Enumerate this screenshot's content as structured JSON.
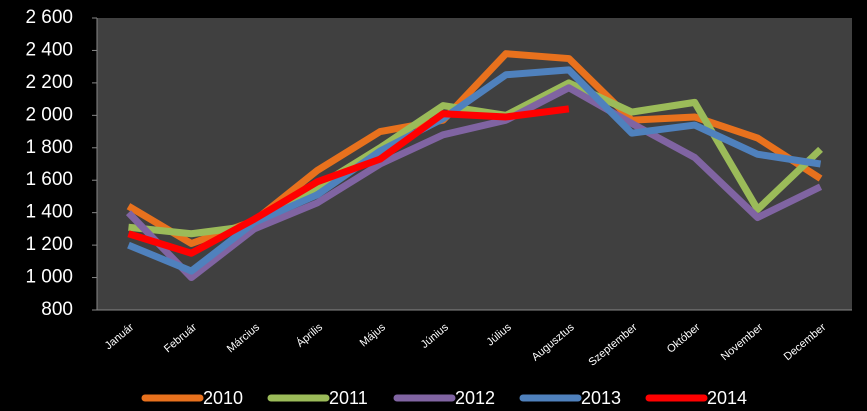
{
  "chart_data": {
    "type": "line",
    "categories": [
      "Január",
      "Február",
      "Március",
      "Április",
      "Május",
      "Június",
      "Július",
      "Augusztus",
      "Szeptember",
      "Október",
      "November",
      "December"
    ],
    "series": [
      {
        "name": "2010",
        "color": "#e8711d",
        "values": [
          1440,
          1210,
          1350,
          1660,
          1900,
          1970,
          2380,
          2350,
          1970,
          1990,
          1860,
          1610
        ]
      },
      {
        "name": "2011",
        "color": "#9bbb59",
        "values": [
          1310,
          1270,
          1320,
          1560,
          1800,
          2060,
          2000,
          2200,
          2020,
          2080,
          1420,
          1790
        ]
      },
      {
        "name": "2012",
        "color": "#8064a2",
        "values": [
          1400,
          1000,
          1300,
          1460,
          1700,
          1880,
          1970,
          2170,
          1950,
          1740,
          1370,
          1560
        ]
      },
      {
        "name": "2013",
        "color": "#4f81bd",
        "values": [
          1200,
          1040,
          1340,
          1510,
          1780,
          1980,
          2250,
          2280,
          1890,
          1940,
          1760,
          1700
        ]
      },
      {
        "name": "2014",
        "color": "#ff0000",
        "values": [
          1270,
          1150,
          1360,
          1590,
          1730,
          2010,
          1990,
          2040,
          null,
          null,
          null,
          null
        ]
      }
    ],
    "ylim": [
      800,
      2600
    ],
    "yticks": [
      800,
      {
        "value": 1000,
        "label": "1 000"
      },
      {
        "value": 1200,
        "label": "1 200"
      },
      {
        "value": 1400,
        "label": "1 400"
      },
      {
        "value": 1600,
        "label": "1 600"
      },
      {
        "value": 1800,
        "label": "1 800"
      },
      {
        "value": 2000,
        "label": "2 000"
      },
      {
        "value": 2200,
        "label": "2 200"
      },
      {
        "value": 2400,
        "label": "2 400"
      },
      {
        "value": 2600,
        "label": "2 600"
      }
    ],
    "grid": false,
    "legend": "bottom"
  }
}
